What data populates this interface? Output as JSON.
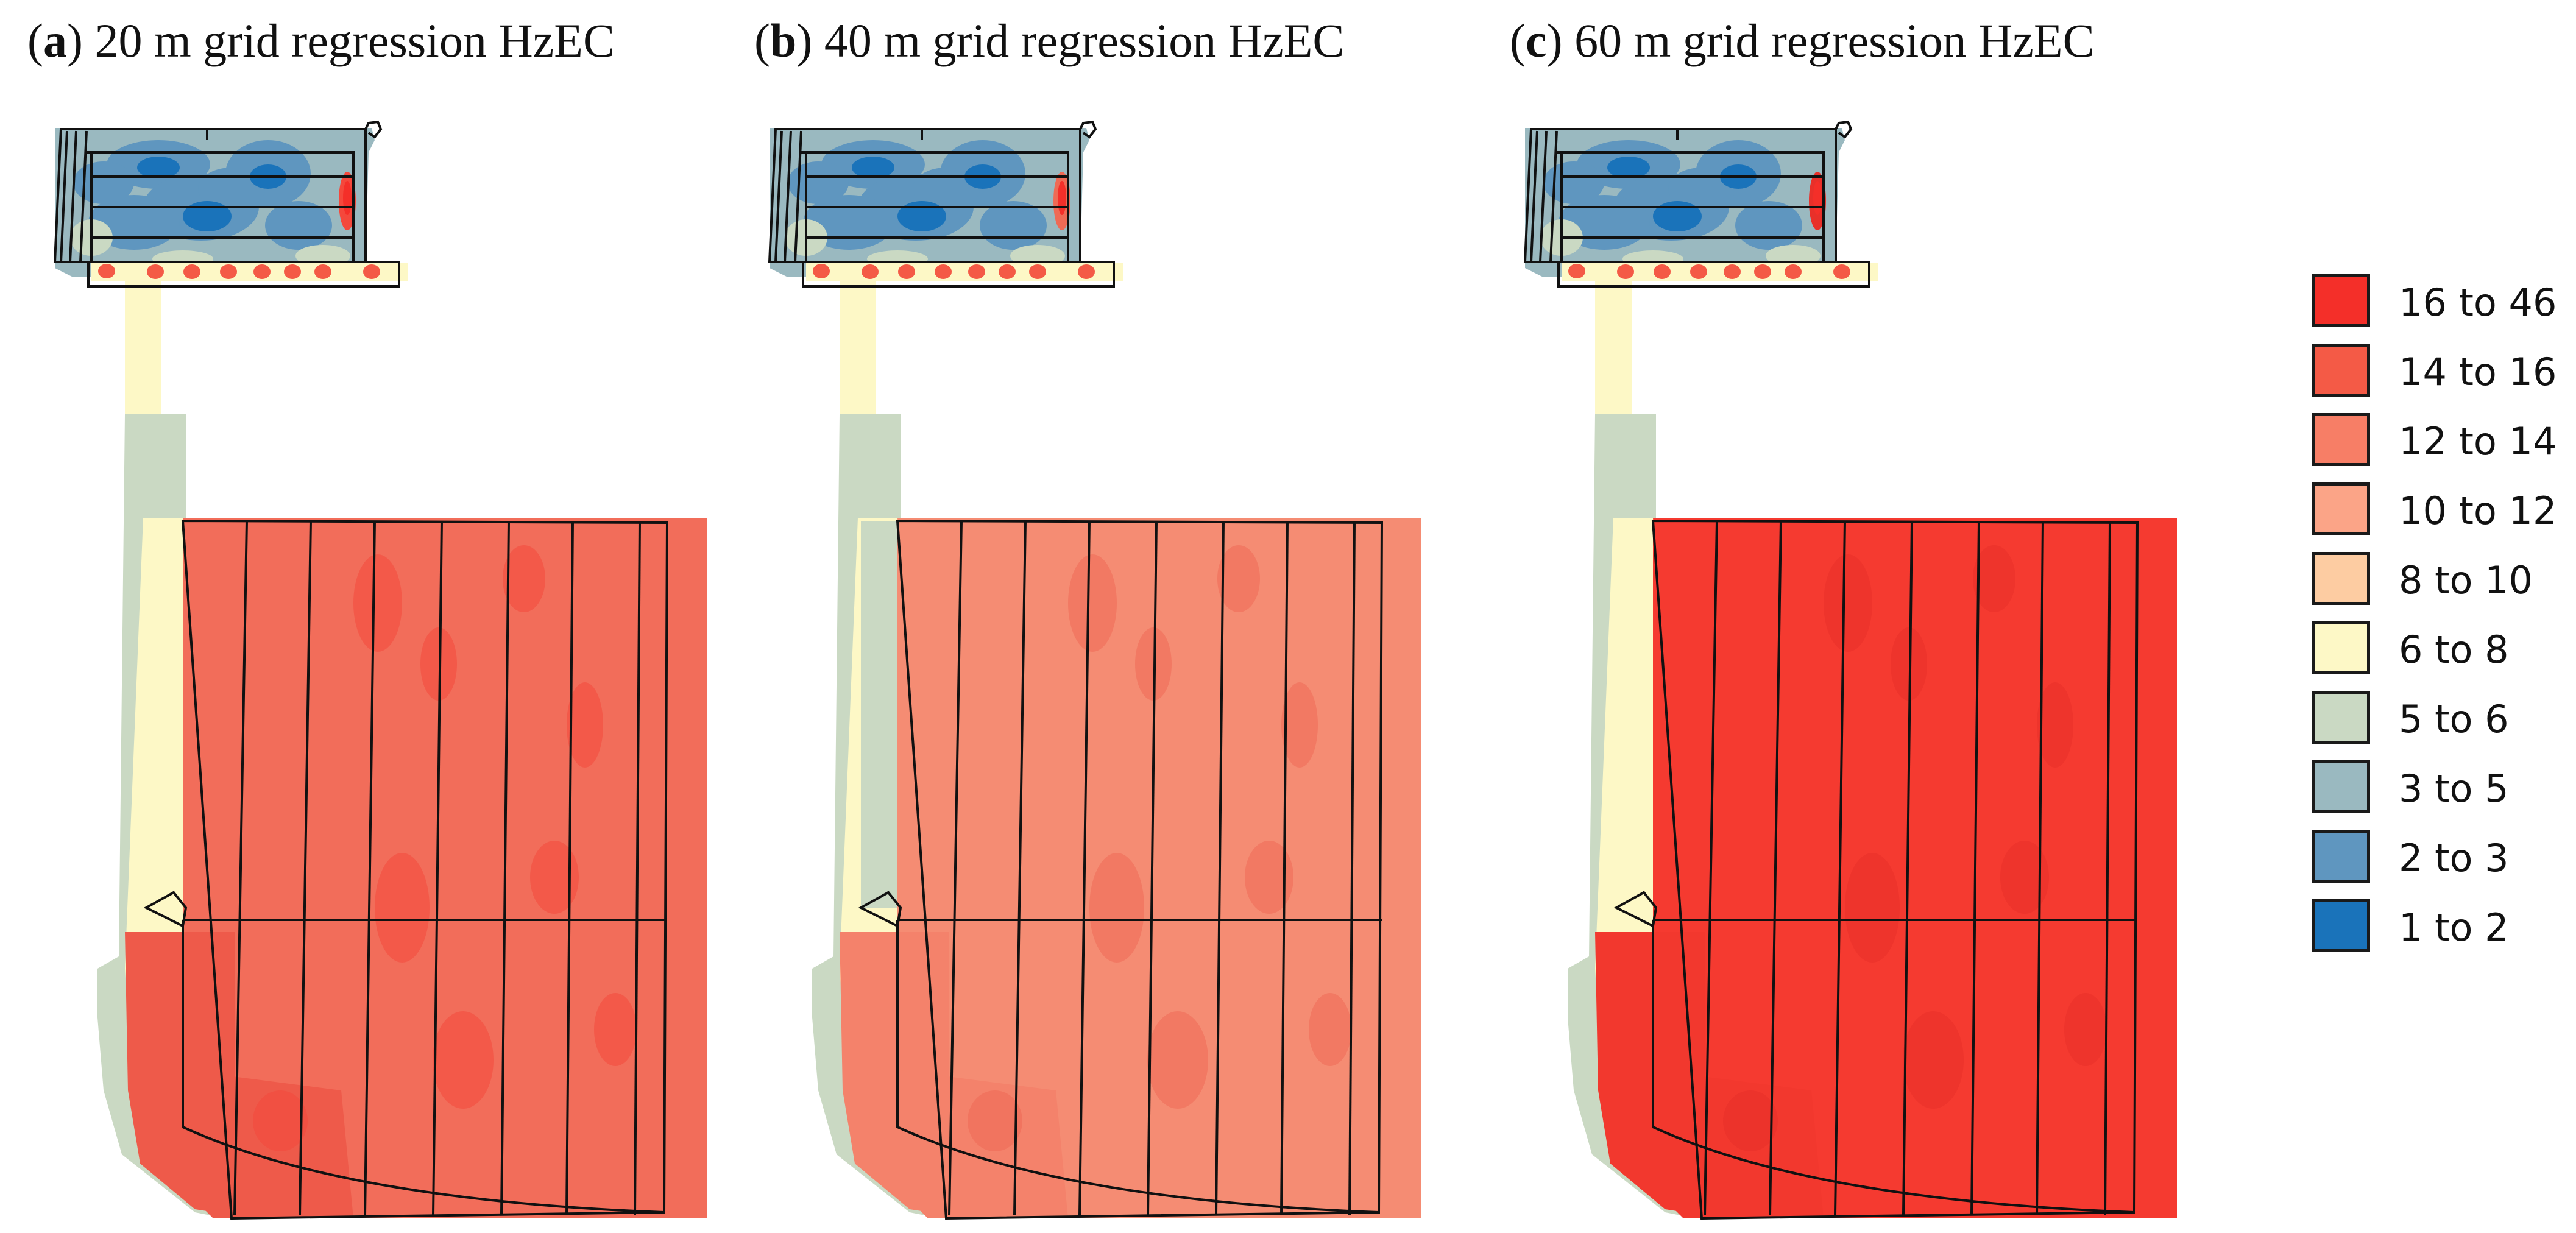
{
  "panels": [
    {
      "letter": "a",
      "title": "20 m grid regression HzEC",
      "south_fill": "#f26d5a",
      "south_fill_lower": "#ee5a4a",
      "hot_fill": "#f4483c"
    },
    {
      "letter": "b",
      "title": "40 m grid regression HzEC",
      "south_fill": "#f58c73",
      "south_fill_lower": "#f4826b",
      "hot_fill": "#ef6a55"
    },
    {
      "letter": "c",
      "title": "60 m grid regression HzEC",
      "south_fill": "#f53a30",
      "south_fill_lower": "#f2382e",
      "hot_fill": "#e8302a"
    }
  ],
  "legend": {
    "items": [
      {
        "label": "16 to 46",
        "color": "#f42f29"
      },
      {
        "label": "14 to 16",
        "color": "#f45a46"
      },
      {
        "label": "12 to 14",
        "color": "#f77e66"
      },
      {
        "label": "10 to 12",
        "color": "#fba487"
      },
      {
        "label": "8 to 10",
        "color": "#fdcca2"
      },
      {
        "label": "6 to 8",
        "color": "#fdf8c6"
      },
      {
        "label": "5 to 6",
        "color": "#cad9c3"
      },
      {
        "label": "3 to 5",
        "color": "#9ab9c0"
      },
      {
        "label": "2 to 3",
        "color": "#5f96bf"
      },
      {
        "label": "1 to 2",
        "color": "#1a73ba"
      }
    ]
  }
}
